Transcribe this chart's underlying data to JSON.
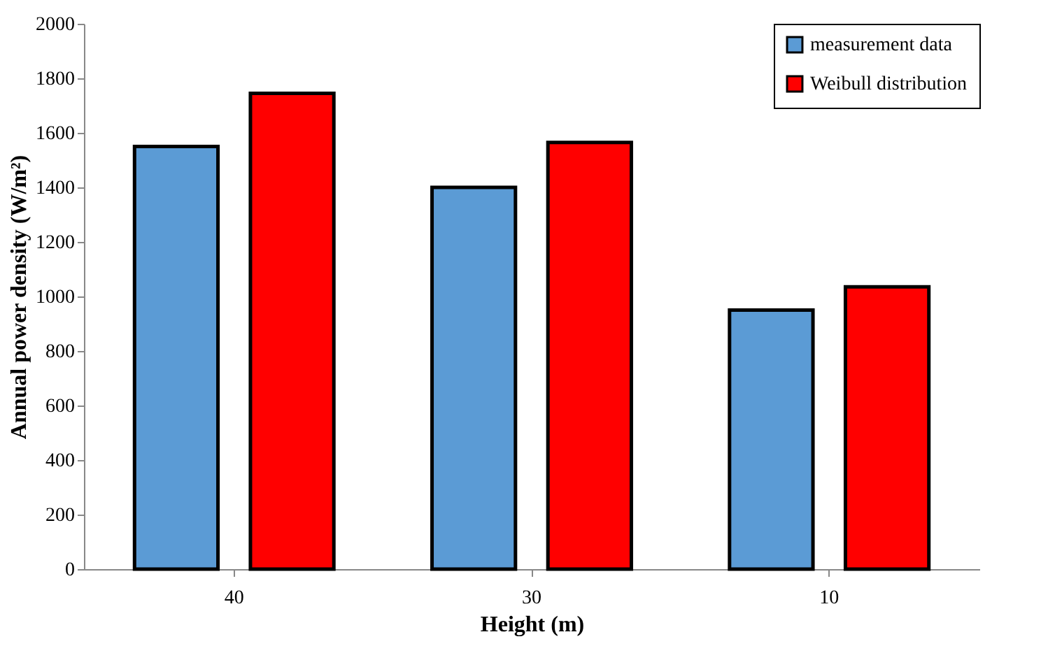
{
  "chart_data": {
    "type": "bar",
    "xlabel": "Height (m)",
    "ylabel": "Annual power density (W/m²)",
    "categories": [
      "40",
      "30",
      "10"
    ],
    "series": [
      {
        "name": "measurement data",
        "color": "#5b9bd5",
        "values": [
          1550,
          1400,
          950
        ]
      },
      {
        "name": "Weibull distribution",
        "color": "#ff0000",
        "values": [
          1745,
          1565,
          1035
        ]
      }
    ],
    "ylim": [
      0,
      2000
    ],
    "yticks": [
      0,
      200,
      400,
      600,
      800,
      1000,
      1200,
      1400,
      1600,
      1800,
      2000
    ],
    "grid": false,
    "legend": "top right"
  }
}
